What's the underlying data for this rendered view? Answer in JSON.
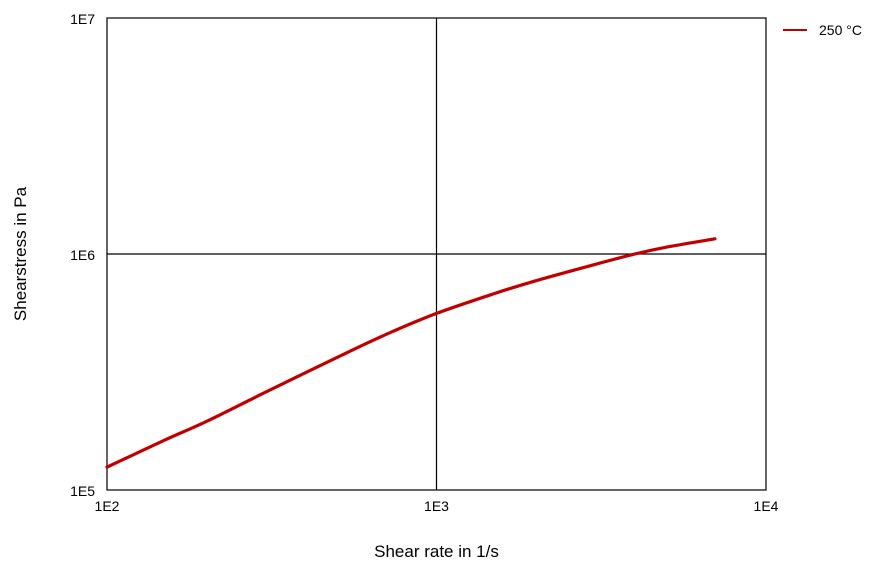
{
  "chart_data": {
    "type": "line",
    "title": "",
    "xlabel": "Shear rate in 1/s",
    "ylabel": "Shearstress in Pa",
    "xscale": "log",
    "yscale": "log",
    "xlim": [
      100,
      10000
    ],
    "ylim": [
      100000,
      10000000
    ],
    "xticks": [
      100,
      1000,
      10000
    ],
    "xtick_labels": [
      "1E2",
      "1E3",
      "1E4"
    ],
    "yticks": [
      100000,
      1000000,
      10000000
    ],
    "ytick_labels": [
      "1E5",
      "1E6",
      "1E7"
    ],
    "grid": true,
    "legend": "top-right, outside plot",
    "series": [
      {
        "name": "250 °C",
        "color": "#c00000",
        "x": [
          100,
          150,
          200,
          300,
          500,
          700,
          1000,
          1500,
          2000,
          3000,
          4000,
          5000,
          7000
        ],
        "y": [
          125000,
          163000,
          195000,
          258000,
          365000,
          455000,
          560000,
          680000,
          770000,
          900000,
          1000000,
          1070000,
          1160000
        ]
      }
    ]
  }
}
